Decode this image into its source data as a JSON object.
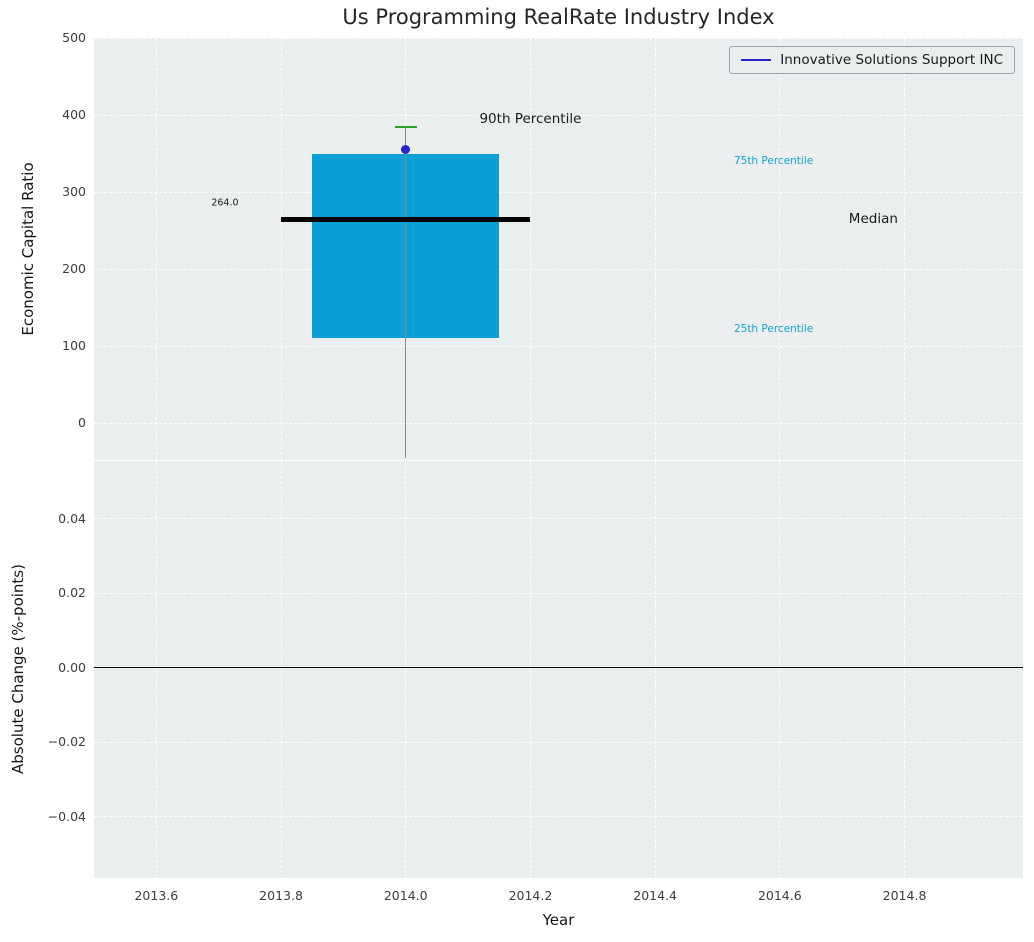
{
  "title": "Us Programming RealRate Industry Index",
  "legend": {
    "label": "Innovative Solutions Support INC"
  },
  "colors": {
    "figure_bg": "#ffffff",
    "axes_bg": "#eaeeef",
    "grid": "#ffffff",
    "box_fill": "#0a9fd6",
    "median_line": "#000000",
    "cap": "#2ca02c",
    "marker": "#2424cc",
    "legend_line": "#2424cc",
    "percentile_label": "#17a2c9",
    "whisker": "#8a8a8a",
    "tick_text": "#3d3d3d",
    "title_text": "#262626",
    "zero_line": "#000000"
  },
  "chart_data": [
    {
      "type": "boxplot",
      "title": "Us Programming RealRate Industry Index",
      "ylabel": "Economic Capital Ratio",
      "xlim": [
        2013.5,
        2014.99
      ],
      "ylim": [
        -48,
        500
      ],
      "grid": true,
      "legend_position": "upper right",
      "xticks": [
        2013.6,
        2013.8,
        2014.0,
        2014.2,
        2014.4,
        2014.6,
        2014.8
      ],
      "yticks": [
        {
          "v": 0,
          "label": "0"
        },
        {
          "v": 100,
          "label": "100"
        },
        {
          "v": 200,
          "label": "200"
        },
        {
          "v": 300,
          "label": "300"
        },
        {
          "v": 400,
          "label": "400"
        },
        {
          "v": 500,
          "label": "500"
        }
      ],
      "box": {
        "center_x": 2014.0,
        "box_left": 2013.85,
        "box_right": 2014.15,
        "q1": 110,
        "q3": 350,
        "median": 264,
        "median_line_left": 2013.8,
        "median_line_right": 2014.2,
        "p90": 385,
        "whisker_bottom": -45,
        "company_point": {
          "x": 2014.0,
          "y": 355,
          "series": "Innovative Solutions Support INC"
        }
      },
      "annotations": [
        {
          "text": "90th Percentile",
          "x": 2014.2,
          "y": 395,
          "color": "#1a1a1a",
          "size": 13.5
        },
        {
          "text": "75th Percentile",
          "x": 2014.59,
          "y": 340,
          "color": "#17a2c9",
          "size": 10.5
        },
        {
          "text": "Median",
          "x": 2014.75,
          "y": 265,
          "color": "#1a1a1a",
          "size": 13.5
        },
        {
          "text": "25th Percentile",
          "x": 2014.59,
          "y": 122,
          "color": "#17a2c9",
          "size": 10.5
        },
        {
          "text": "264.0",
          "x": 2013.71,
          "y": 286,
          "color": "#1a1a1a",
          "size": 9.5
        }
      ]
    },
    {
      "type": "line",
      "ylabel": "Absolute Change (%-points)",
      "xlabel": "Year",
      "xlim": [
        2013.5,
        2014.99
      ],
      "ylim": [
        -0.0565,
        0.0555
      ],
      "grid": true,
      "xticks": [
        2013.6,
        2013.8,
        2014.0,
        2014.2,
        2014.4,
        2014.6,
        2014.8
      ],
      "xtick_labels": [
        "2013.6",
        "2013.8",
        "2014.0",
        "2014.2",
        "2014.4",
        "2014.6",
        "2014.8"
      ],
      "yticks": [
        {
          "v": 0.04,
          "label": "0.04"
        },
        {
          "v": 0.02,
          "label": "0.02"
        },
        {
          "v": 0.0,
          "label": "0.00"
        },
        {
          "v": -0.02,
          "label": "−0.02"
        },
        {
          "v": -0.04,
          "label": "−0.04"
        }
      ],
      "zero_line_y": 0.0
    }
  ]
}
